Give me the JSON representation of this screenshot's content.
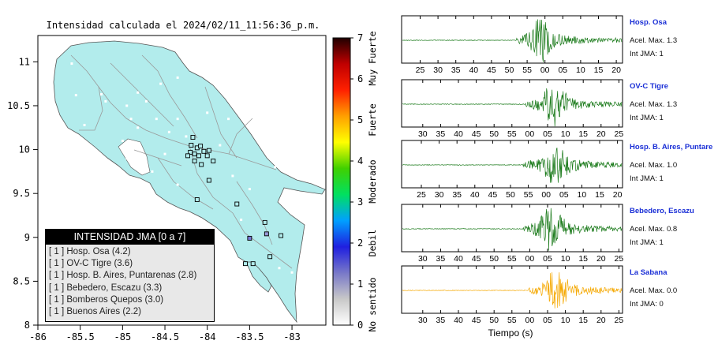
{
  "map": {
    "title": "Intensidad calculada el 2024/02/11_11:56:36_p.m.",
    "x_ticks": [
      "-86",
      "-85.5",
      "-85",
      "-84.5",
      "-84",
      "-83.5",
      "-83"
    ],
    "y_ticks": [
      "8",
      "8.5",
      "9",
      "9.5",
      "10",
      "10.5",
      "11"
    ],
    "xlim": [
      -86,
      -82.6
    ],
    "ylim": [
      8,
      11.3
    ],
    "land_color": "#b2ecec",
    "stations": [
      {
        "lon": -84.17,
        "lat": 10.14,
        "color": "#b2ecec"
      },
      {
        "lon": -84.12,
        "lat": 10.02,
        "color": "#b2ecec"
      },
      {
        "lon": -84.08,
        "lat": 10.04,
        "color": "#b2ecec"
      },
      {
        "lon": -84.19,
        "lat": 10.05,
        "color": "#b2ecec"
      },
      {
        "lon": -84.2,
        "lat": 9.97,
        "color": "#b2ecec"
      },
      {
        "lon": -84.15,
        "lat": 9.95,
        "color": "#b2ecec"
      },
      {
        "lon": -84.1,
        "lat": 9.93,
        "color": "#b2ecec"
      },
      {
        "lon": -84.23,
        "lat": 9.93,
        "color": "#b2ecec"
      },
      {
        "lon": -84.04,
        "lat": 9.98,
        "color": "#b2ecec"
      },
      {
        "lon": -83.98,
        "lat": 9.99,
        "color": "#b2ecec"
      },
      {
        "lon": -84.0,
        "lat": 9.93,
        "color": "#b2ecec"
      },
      {
        "lon": -84.07,
        "lat": 9.83,
        "color": "#b2ecec"
      },
      {
        "lon": -84.15,
        "lat": 9.87,
        "color": "#b2ecec"
      },
      {
        "lon": -83.93,
        "lat": 9.87,
        "color": "#b2ecec"
      },
      {
        "lon": -83.98,
        "lat": 9.65,
        "color": "#b2ecec"
      },
      {
        "lon": -84.12,
        "lat": 9.43,
        "color": "#b2ecec"
      },
      {
        "lon": -83.65,
        "lat": 9.38,
        "color": "#b2ecec"
      },
      {
        "lon": -83.32,
        "lat": 9.17,
        "color": "#b2ecec"
      },
      {
        "lon": -83.3,
        "lat": 9.04,
        "color": "#9898d6"
      },
      {
        "lon": -83.13,
        "lat": 9.02,
        "color": "#b2ecec"
      },
      {
        "lon": -83.5,
        "lat": 8.99,
        "color": "#7a7ad6"
      },
      {
        "lon": -83.46,
        "lat": 8.7,
        "color": "#b2ecec"
      },
      {
        "lon": -83.55,
        "lat": 8.7,
        "color": "#b2ecec"
      },
      {
        "lon": -83.26,
        "lat": 8.78,
        "color": "#b2ecec"
      }
    ],
    "cities": [
      {
        "lon": -85.6,
        "lat": 10.98
      },
      {
        "lon": -85.25,
        "lat": 10.63
      },
      {
        "lon": -85.2,
        "lat": 10.55
      },
      {
        "lon": -84.95,
        "lat": 10.5
      },
      {
        "lon": -84.82,
        "lat": 10.65
      },
      {
        "lon": -84.55,
        "lat": 10.75
      },
      {
        "lon": -84.35,
        "lat": 10.82
      },
      {
        "lon": -84.9,
        "lat": 10.35
      },
      {
        "lon": -85.45,
        "lat": 10.28
      },
      {
        "lon": -85.55,
        "lat": 10.62
      },
      {
        "lon": -84.82,
        "lat": 10.25
      },
      {
        "lon": -84.6,
        "lat": 10.35
      },
      {
        "lon": -84.45,
        "lat": 10.2
      },
      {
        "lon": -84.35,
        "lat": 10.35
      },
      {
        "lon": -84.0,
        "lat": 10.42
      },
      {
        "lon": -83.75,
        "lat": 10.35
      },
      {
        "lon": -83.4,
        "lat": 10.2
      },
      {
        "lon": -83.05,
        "lat": 9.98
      },
      {
        "lon": -83.2,
        "lat": 9.8
      },
      {
        "lon": -84.95,
        "lat": 9.9
      },
      {
        "lon": -85.25,
        "lat": 9.85
      },
      {
        "lon": -84.65,
        "lat": 9.75
      },
      {
        "lon": -84.35,
        "lat": 9.6
      },
      {
        "lon": -83.7,
        "lat": 9.7
      },
      {
        "lon": -83.5,
        "lat": 9.55
      },
      {
        "lon": -84.25,
        "lat": 10.15
      },
      {
        "lon": -83.85,
        "lat": 10.05
      },
      {
        "lon": -84.72,
        "lat": 10.55
      },
      {
        "lon": -83.6,
        "lat": 9.2
      },
      {
        "lon": -83.0,
        "lat": 8.6
      },
      {
        "lon": -83.15,
        "lat": 8.65
      },
      {
        "lon": -82.93,
        "lat": 8.06
      },
      {
        "lon": -84.5,
        "lat": 9.95
      },
      {
        "lon": -85.0,
        "lat": 10.1
      }
    ]
  },
  "colorbar": {
    "ticks": [
      "0",
      "1",
      "2",
      "3",
      "4",
      "5",
      "6",
      "7"
    ],
    "range": [
      0,
      7
    ],
    "category_labels": [
      {
        "text": "No sentido",
        "value": 0.5
      },
      {
        "text": "Debil",
        "value": 2.0
      },
      {
        "text": "Moderado",
        "value": 3.5
      },
      {
        "text": "Fuerte",
        "value": 5.0
      },
      {
        "text": "Muy Fuerte",
        "value": 6.5
      }
    ],
    "colors": [
      "#ffffff",
      "#c8c8c8",
      "#7878c8",
      "#1f1fe0",
      "#00a0ff",
      "#00e060",
      "#40d000",
      "#ffff00",
      "#ffa000",
      "#ff2000",
      "#c00000",
      "#200000"
    ]
  },
  "legend": {
    "title": "INTENSIDAD JMA [0 a 7]",
    "items": [
      "[ 1 ]  Hosp. Osa (4.2)",
      "[ 1 ]  OV-C Tigre (3.6)",
      "[ 1 ]  Hosp. B. Aires, Puntarenas (2.8)",
      "[ 1 ]  Bebedero, Escazu (3.3)",
      "[ 1 ]  Bomberos Quepos (3.0)",
      "[ 1 ]  Buenos Aires (2.2)"
    ]
  },
  "waveforms": {
    "xlabel": "Tiempo (s)",
    "panels": [
      {
        "name": "Hosp. Osa",
        "acel": "Acel. Max. 1.3",
        "int": "Int JMA: 1",
        "color": "#1a7a1a",
        "ticks": [
          "25",
          "30",
          "35",
          "40",
          "45",
          "50",
          "55",
          "00",
          "05",
          "10",
          "15",
          "20"
        ],
        "t0": 23.5,
        "onset": 52,
        "peak": 63,
        "amp": 22,
        "seed": 3
      },
      {
        "name": "OV-C Tigre",
        "acel": "Acel. Max. 1.3",
        "int": "Int JMA: 1",
        "color": "#1a7a1a",
        "ticks": [
          "30",
          "35",
          "40",
          "45",
          "50",
          "55",
          "00",
          "05",
          "10",
          "15",
          "20",
          "25"
        ],
        "t0": 26.8,
        "onset": 56,
        "peak": 69,
        "amp": 21,
        "seed": 7
      },
      {
        "name": "Hosp. B. Aires, Puntare",
        "acel": "Acel. Max. 1.0",
        "int": "Int JMA: 1",
        "color": "#1a7a1a",
        "ticks": [
          "25",
          "30",
          "35",
          "40",
          "45",
          "50",
          "55",
          "00",
          "05",
          "10",
          "15",
          "20"
        ],
        "t0": 25.0,
        "onset": 55,
        "peak": 70,
        "amp": 20,
        "seed": 11
      },
      {
        "name": "Bebedero, Escazu",
        "acel": "Acel. Max. 0.8",
        "int": "Int JMA: 1",
        "color": "#1a7a1a",
        "ticks": [
          "30",
          "35",
          "40",
          "45",
          "50",
          "55",
          "00",
          "05",
          "10",
          "15",
          "20",
          "25"
        ],
        "t0": 26.8,
        "onset": 55,
        "peak": 67.5,
        "amp": 24,
        "seed": 17
      },
      {
        "name": "La Sabana",
        "acel": "Acel. Max. 0.0",
        "int": "Int JMA: 0",
        "color": "#f5a800",
        "ticks": [
          "30",
          "35",
          "40",
          "45",
          "50",
          "55",
          "00",
          "05",
          "10",
          "15",
          "20",
          "25"
        ],
        "t0": 26.8,
        "onset": 57.5,
        "peak": 70,
        "amp": 20,
        "seed": 23
      }
    ]
  }
}
